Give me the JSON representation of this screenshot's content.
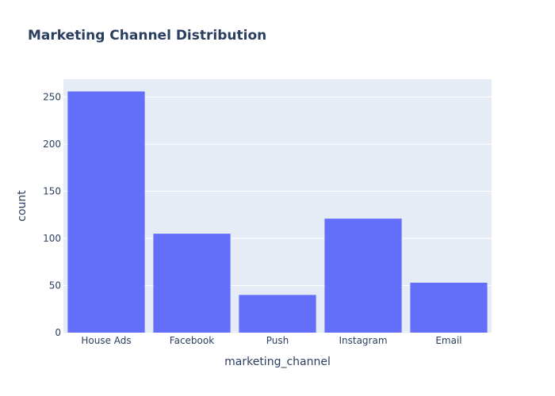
{
  "colors": {
    "plot_bg": "#e5ecf6",
    "bar": "#636efa",
    "grid": "#ffffff",
    "text": "#2a3f5f"
  },
  "chart_data": {
    "type": "bar",
    "title": "Marketing Channel Distribution",
    "xlabel": "marketing_channel",
    "ylabel": "count",
    "categories": [
      "House Ads",
      "Facebook",
      "Push",
      "Instagram",
      "Email"
    ],
    "values": [
      256,
      105,
      40,
      121,
      53
    ],
    "ylim": [
      0,
      269
    ],
    "yticks": [
      0,
      50,
      100,
      150,
      200,
      250
    ],
    "grid": true,
    "legend": "none"
  }
}
